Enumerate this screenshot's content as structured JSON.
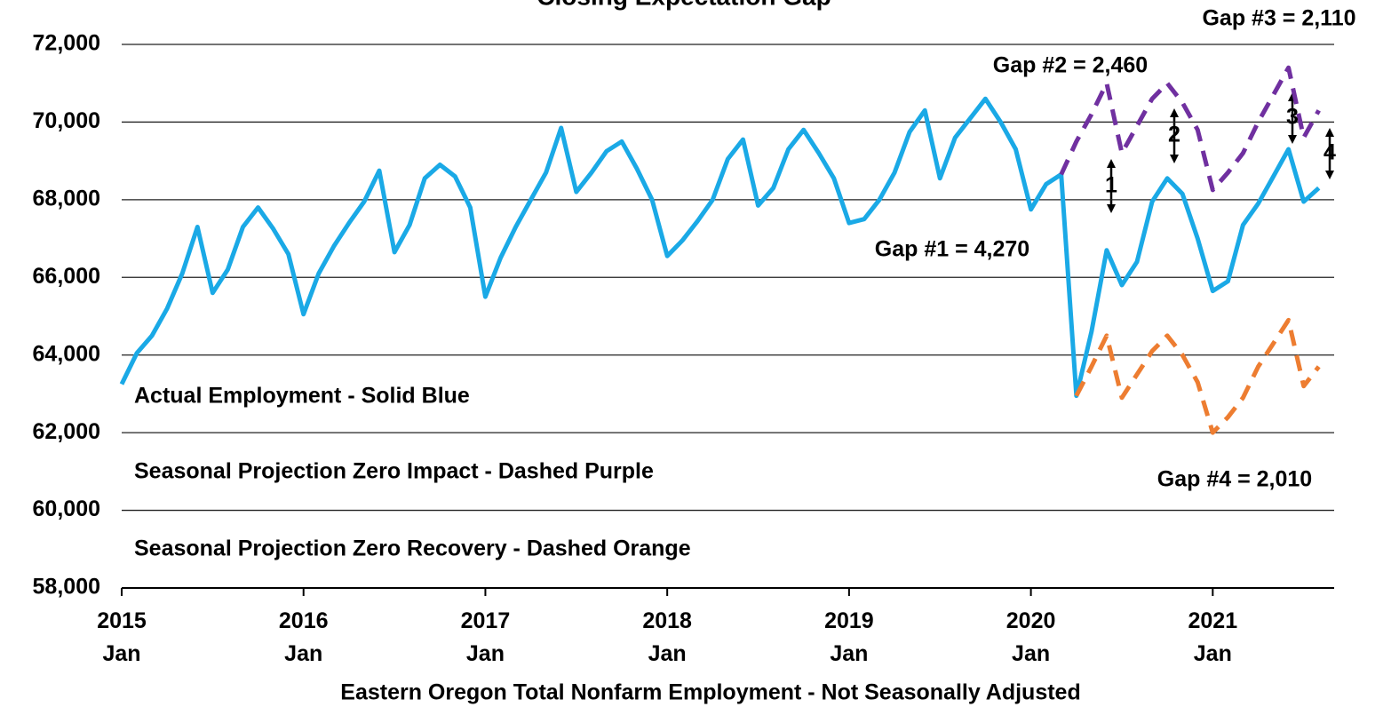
{
  "chart_data": {
    "type": "line",
    "title": "Closing Expectation Gap",
    "x_label": "Eastern Oregon Total Nonfarm Employment - Not Seasonally Adjusted",
    "categories": [
      "2015 Jan",
      null,
      null,
      null,
      null,
      null,
      null,
      null,
      null,
      null,
      null,
      null,
      "2016 Jan",
      null,
      null,
      null,
      null,
      null,
      null,
      null,
      null,
      null,
      null,
      null,
      "2017 Jan",
      null,
      null,
      null,
      null,
      null,
      null,
      null,
      null,
      null,
      null,
      null,
      "2018 Jan",
      null,
      null,
      null,
      null,
      null,
      null,
      null,
      null,
      null,
      null,
      null,
      "2019 Jan",
      null,
      null,
      null,
      null,
      null,
      null,
      null,
      null,
      null,
      null,
      null,
      "2020 Jan",
      null,
      null,
      null,
      null,
      null,
      null,
      null,
      null,
      null,
      null,
      null,
      "2021 Jan",
      null,
      null,
      null,
      null,
      null,
      null,
      null
    ],
    "ylim": [
      58000,
      72000
    ],
    "yticks": [
      {
        "value": 58000,
        "label": "58,000"
      },
      {
        "value": 60000,
        "label": "60,000"
      },
      {
        "value": 62000,
        "label": "62,000"
      },
      {
        "value": 64000,
        "label": "64,000"
      },
      {
        "value": 66000,
        "label": "66,000"
      },
      {
        "value": 68000,
        "label": "68,000"
      },
      {
        "value": 70000,
        "label": "70,000"
      },
      {
        "value": 72000,
        "label": "72,000"
      }
    ],
    "grid": true,
    "series": [
      {
        "name": "Actual Employment - Solid Blue",
        "color": "#1aa9e6",
        "dashed": false,
        "values": [
          63250,
          64050,
          64500,
          65200,
          66100,
          67300,
          65600,
          66200,
          67300,
          67800,
          67250,
          66600,
          65050,
          66100,
          66800,
          67400,
          67950,
          68750,
          66650,
          67350,
          68550,
          68900,
          68600,
          67800,
          65500,
          66500,
          67300,
          68000,
          68700,
          69850,
          68200,
          68700,
          69250,
          69500,
          68800,
          68000,
          66550,
          66950,
          67450,
          68000,
          69050,
          69550,
          67850,
          68300,
          69300,
          69800,
          69200,
          68550,
          67400,
          67500,
          68000,
          68700,
          69750,
          70300,
          68550,
          69600,
          70100,
          70600,
          70000,
          69300,
          67750,
          68400,
          68650,
          62950,
          64600,
          66700,
          65800,
          66400,
          67950,
          68550,
          68150,
          67000,
          65650,
          65900,
          67350,
          67900,
          68600,
          69300,
          67950,
          68300
        ]
      },
      {
        "name": "Seasonal Projection Zero Impact - Dashed Purple",
        "color": "#7030a0",
        "dashed": true,
        "values": [
          null,
          null,
          null,
          null,
          null,
          null,
          null,
          null,
          null,
          null,
          null,
          null,
          null,
          null,
          null,
          null,
          null,
          null,
          null,
          null,
          null,
          null,
          null,
          null,
          null,
          null,
          null,
          null,
          null,
          null,
          null,
          null,
          null,
          null,
          null,
          null,
          null,
          null,
          null,
          null,
          null,
          null,
          null,
          null,
          null,
          null,
          null,
          null,
          null,
          null,
          null,
          null,
          null,
          null,
          null,
          null,
          null,
          null,
          null,
          null,
          null,
          null,
          68650,
          69500,
          70200,
          71000,
          69200,
          69900,
          70600,
          71000,
          70500,
          69800,
          68250,
          68700,
          69200,
          70000,
          70700,
          71400,
          69600,
          70300
        ]
      },
      {
        "name": "Seasonal Projection Zero Recovery - Dashed Orange",
        "color": "#ed7d31",
        "dashed": true,
        "values": [
          null,
          null,
          null,
          null,
          null,
          null,
          null,
          null,
          null,
          null,
          null,
          null,
          null,
          null,
          null,
          null,
          null,
          null,
          null,
          null,
          null,
          null,
          null,
          null,
          null,
          null,
          null,
          null,
          null,
          null,
          null,
          null,
          null,
          null,
          null,
          null,
          null,
          null,
          null,
          null,
          null,
          null,
          null,
          null,
          null,
          null,
          null,
          null,
          null,
          null,
          null,
          null,
          null,
          null,
          null,
          null,
          null,
          null,
          null,
          null,
          null,
          null,
          null,
          62950,
          63700,
          64500,
          62900,
          63500,
          64100,
          64500,
          64000,
          63300,
          62000,
          62400,
          62900,
          63700,
          64300,
          64900,
          63200,
          63700
        ]
      }
    ],
    "annotations": [
      "Gap #1 = 4,270",
      "Gap #2 = 2,460",
      "Gap #3 = 2,110",
      "Gap #4 = 2,010",
      "1",
      "2",
      "3",
      "4"
    ]
  }
}
